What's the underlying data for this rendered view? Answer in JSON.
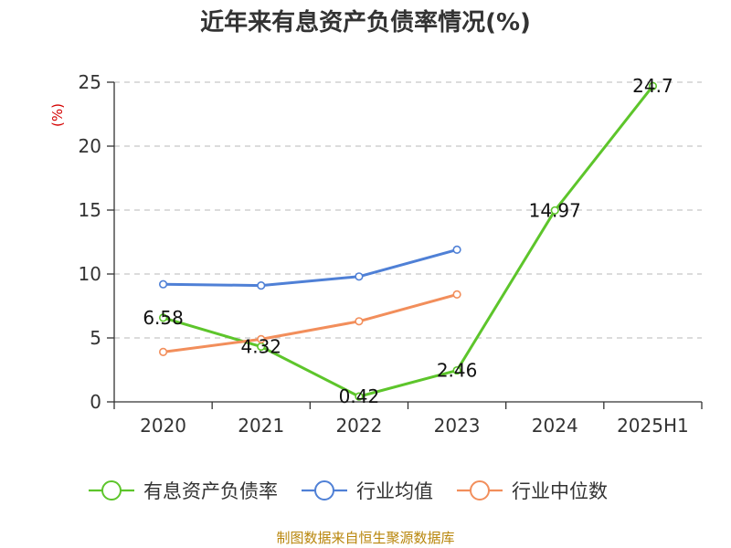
{
  "chart_data": {
    "type": "line",
    "title": "近年来有息资产负债率情况(%)",
    "ylabel": "(%)",
    "xlabel": "",
    "categories": [
      "2020",
      "2021",
      "2022",
      "2023",
      "2024",
      "2025H1"
    ],
    "ylim": [
      0,
      25
    ],
    "yticks": [
      0,
      5,
      10,
      15,
      20,
      25
    ],
    "grid": true,
    "legend_position": "bottom",
    "series": [
      {
        "name": "有息资产负债率",
        "color": "#5dc52b",
        "values": [
          6.58,
          4.32,
          0.42,
          2.46,
          14.97,
          24.7
        ],
        "labels": [
          "6.58",
          "4.32",
          "0.42",
          "2.46",
          "14.97",
          "24.7"
        ]
      },
      {
        "name": "行业均值",
        "color": "#4f80d6",
        "values": [
          9.2,
          9.1,
          9.8,
          11.9,
          null,
          null
        ]
      },
      {
        "name": "行业中位数",
        "color": "#f28e5b",
        "values": [
          3.9,
          4.9,
          6.3,
          8.4,
          null,
          null
        ]
      }
    ]
  },
  "source": "制图数据来自恒生聚源数据库"
}
